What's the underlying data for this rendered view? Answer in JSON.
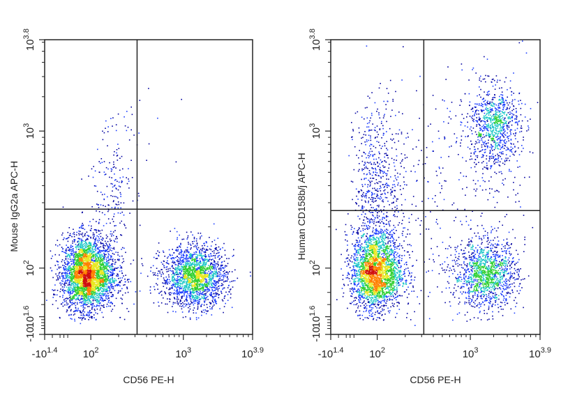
{
  "chart_data": [
    {
      "type": "scatter",
      "subtype": "flow-cytometry density dot plot",
      "xlabel": "CD56 PE-H",
      "ylabel": "Mouse IgG2a APC-H",
      "x_scale": "biexponential (log)",
      "y_scale": "biexponential (log)",
      "x_ticks": [
        {
          "sign": "-",
          "base": "10",
          "exp": "1.4"
        },
        {
          "sign": "",
          "base": "10",
          "exp": "2"
        },
        {
          "sign": "",
          "base": "10",
          "exp": "3"
        },
        {
          "sign": "",
          "base": "10",
          "exp": "3.9"
        }
      ],
      "y_ticks": [
        {
          "sign": "-",
          "base": "10",
          "exp": ""
        },
        {
          "sign": "",
          "base": "10",
          "exp": "1.6"
        },
        {
          "sign": "",
          "base": "10",
          "exp": "2"
        },
        {
          "sign": "",
          "base": "10",
          "exp": "3"
        },
        {
          "sign": "",
          "base": "10",
          "exp": "3.8"
        }
      ],
      "quadrant_gate_log10": {
        "x": 2.5,
        "y": 2.43
      },
      "populations_log10": [
        {
          "cx": 1.95,
          "cy": 1.95,
          "sx": 0.16,
          "sy": 0.14,
          "n": 3400
        },
        {
          "cx": 3.15,
          "cy": 1.93,
          "sx": 0.2,
          "sy": 0.12,
          "n": 2000
        },
        {
          "cx": 2.2,
          "cy": 2.55,
          "sx": 0.12,
          "sy": 0.2,
          "n": 160
        },
        {
          "cx": 2.3,
          "cy": 2.95,
          "sx": 0.1,
          "sy": 0.15,
          "n": 30
        },
        {
          "cx": 2.7,
          "cy": 3.1,
          "sx": 0.25,
          "sy": 0.4,
          "n": 10
        }
      ],
      "grid": false,
      "legend": "none",
      "density_colors": [
        "#0000a0",
        "#1a3cff",
        "#20c8c8",
        "#30d030",
        "#e8e820",
        "#ff8000",
        "#d01010"
      ]
    },
    {
      "type": "scatter",
      "subtype": "flow-cytometry density dot plot",
      "xlabel": "CD56 PE-H",
      "ylabel": "Human CD158b/j APC-H",
      "x_scale": "biexponential (log)",
      "y_scale": "biexponential (log)",
      "x_ticks": [
        {
          "sign": "-",
          "base": "10",
          "exp": "1.4"
        },
        {
          "sign": "",
          "base": "10",
          "exp": "2"
        },
        {
          "sign": "",
          "base": "10",
          "exp": "3"
        },
        {
          "sign": "",
          "base": "10",
          "exp": "3.9"
        }
      ],
      "y_ticks": [
        {
          "sign": "-",
          "base": "10",
          "exp": ""
        },
        {
          "sign": "",
          "base": "10",
          "exp": "1.6"
        },
        {
          "sign": "",
          "base": "10",
          "exp": "2"
        },
        {
          "sign": "",
          "base": "10",
          "exp": "3"
        },
        {
          "sign": "",
          "base": "10",
          "exp": "3.8"
        }
      ],
      "quadrant_gate_log10": {
        "x": 2.5,
        "y": 2.42
      },
      "populations_log10": [
        {
          "cx": 1.97,
          "cy": 1.97,
          "sx": 0.15,
          "sy": 0.15,
          "n": 2600
        },
        {
          "cx": 2.0,
          "cy": 2.6,
          "sx": 0.15,
          "sy": 0.3,
          "n": 600
        },
        {
          "cx": 3.2,
          "cy": 1.95,
          "sx": 0.2,
          "sy": 0.13,
          "n": 1300
        },
        {
          "cx": 3.3,
          "cy": 3.05,
          "sx": 0.17,
          "sy": 0.17,
          "n": 900
        },
        {
          "cx": 2.8,
          "cy": 2.6,
          "sx": 0.45,
          "sy": 0.5,
          "n": 350
        }
      ],
      "grid": false,
      "legend": "none",
      "density_colors": [
        "#0000a0",
        "#1a3cff",
        "#20c8c8",
        "#30d030",
        "#e8e820",
        "#ff8000",
        "#d01010"
      ]
    }
  ]
}
